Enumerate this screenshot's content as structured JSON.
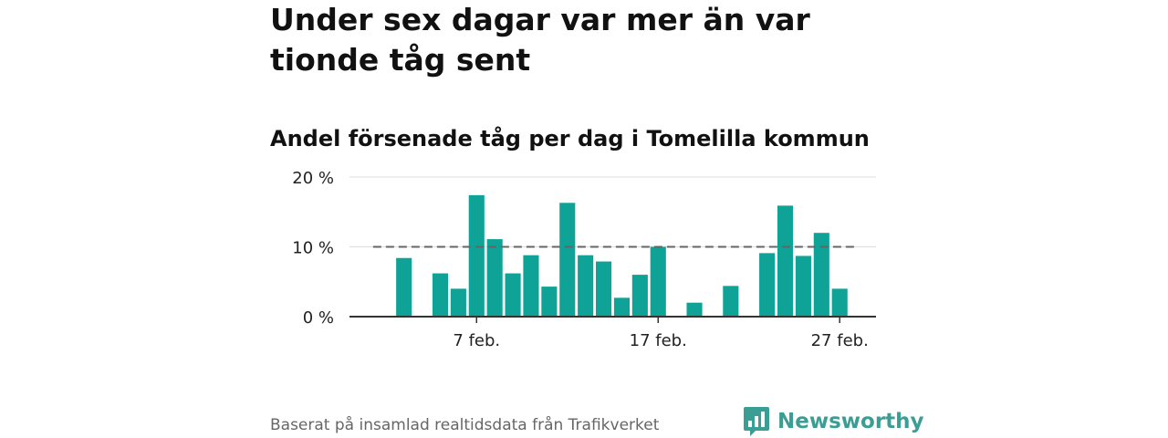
{
  "headline": "Under sex dagar var mer än var tionde tåg sent",
  "source": "Baserat på insamlad realtidsdata från Trafikverket",
  "brand": {
    "name": "Newsworthy",
    "icon": "bar-chart-speech-bubble-icon",
    "color": "#3b9e94"
  },
  "chart_data": {
    "type": "bar",
    "title": "Andel försenade tåg per dag i Tomelilla kommun",
    "x_range": [
      0,
      29
    ],
    "xticks": [
      {
        "day": 7,
        "label": "7 feb."
      },
      {
        "day": 17,
        "label": "17 feb."
      },
      {
        "day": 27,
        "label": "27 feb."
      }
    ],
    "y_range": [
      0,
      20
    ],
    "yticks": [
      {
        "value": 20,
        "label": "20 %"
      },
      {
        "value": 10,
        "label": "10 %"
      },
      {
        "value": 0,
        "label": "0 %"
      }
    ],
    "unit": "%",
    "bars": [
      {
        "day": 3,
        "value": 8.4
      },
      {
        "day": 5,
        "value": 6.2
      },
      {
        "day": 6,
        "value": 4.0
      },
      {
        "day": 7,
        "value": 17.4
      },
      {
        "day": 8,
        "value": 11.1
      },
      {
        "day": 9,
        "value": 6.2
      },
      {
        "day": 10,
        "value": 8.8
      },
      {
        "day": 11,
        "value": 4.3
      },
      {
        "day": 12,
        "value": 16.3
      },
      {
        "day": 13,
        "value": 8.8
      },
      {
        "day": 14,
        "value": 7.9
      },
      {
        "day": 15,
        "value": 2.7
      },
      {
        "day": 16,
        "value": 6.0
      },
      {
        "day": 17,
        "value": 10.0
      },
      {
        "day": 19,
        "value": 2.0
      },
      {
        "day": 21,
        "value": 4.4
      },
      {
        "day": 23,
        "value": 9.1
      },
      {
        "day": 24,
        "value": 15.9
      },
      {
        "day": 25,
        "value": 8.7
      },
      {
        "day": 26,
        "value": 12.0
      },
      {
        "day": 27,
        "value": 4.0
      }
    ],
    "reference_line": {
      "value": 10,
      "style": "dashed",
      "x_range": [
        1.3,
        27.9
      ]
    },
    "bar_color": "#0fa397",
    "grid": true,
    "legend": "none"
  }
}
